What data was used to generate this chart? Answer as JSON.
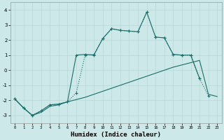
{
  "xlabel": "Humidex (Indice chaleur)",
  "bg_color": "#cce8e8",
  "line_color": "#1a6e6a",
  "xlim": [
    -0.5,
    23.5
  ],
  "ylim": [
    -3.5,
    4.5
  ],
  "yticks": [
    -3,
    -2,
    -1,
    0,
    1,
    2,
    3,
    4
  ],
  "xticks": [
    0,
    1,
    2,
    3,
    4,
    5,
    6,
    7,
    8,
    9,
    10,
    11,
    12,
    13,
    14,
    15,
    16,
    17,
    18,
    19,
    20,
    21,
    22,
    23
  ],
  "line1_x": [
    0,
    1,
    2,
    3,
    4,
    5,
    6,
    7,
    8,
    9,
    10,
    11,
    12,
    13,
    14,
    15,
    16,
    17,
    18,
    19,
    20,
    21,
    22,
    23
  ],
  "line1_y": [
    -1.9,
    -2.5,
    -3.0,
    -2.8,
    -2.4,
    -2.3,
    -2.1,
    -1.95,
    -1.8,
    -1.6,
    -1.4,
    -1.2,
    -1.0,
    -0.8,
    -0.6,
    -0.4,
    -0.2,
    0.0,
    0.2,
    0.35,
    0.5,
    0.65,
    -1.6,
    -1.75
  ],
  "line2_x": [
    0,
    1,
    2,
    3,
    4,
    5,
    6,
    7,
    8,
    9,
    10,
    11,
    12,
    13,
    14,
    15,
    16,
    17,
    18,
    19,
    20,
    21,
    22,
    23
  ],
  "line2_y": [
    -1.9,
    -2.5,
    -3.0,
    -2.7,
    -2.3,
    -2.25,
    -2.1,
    -1.5,
    1.0,
    1.05,
    2.1,
    2.75,
    2.65,
    2.6,
    2.55,
    3.85,
    2.2,
    2.15,
    1.05,
    1.0,
    1.0,
    -0.55,
    -1.7,
    null
  ],
  "line3_x": [
    0,
    1,
    2,
    3,
    4,
    5,
    6,
    7,
    8,
    9,
    10,
    11,
    12,
    13,
    14,
    15,
    16,
    17,
    18,
    19,
    20,
    21,
    22,
    23
  ],
  "line3_y": [
    -1.9,
    -2.5,
    -3.0,
    -2.7,
    -2.3,
    -2.25,
    -2.1,
    1.0,
    1.05,
    1.0,
    2.1,
    2.75,
    2.65,
    2.6,
    2.55,
    3.85,
    2.2,
    2.15,
    1.05,
    1.0,
    1.0,
    -0.55,
    null,
    null
  ]
}
